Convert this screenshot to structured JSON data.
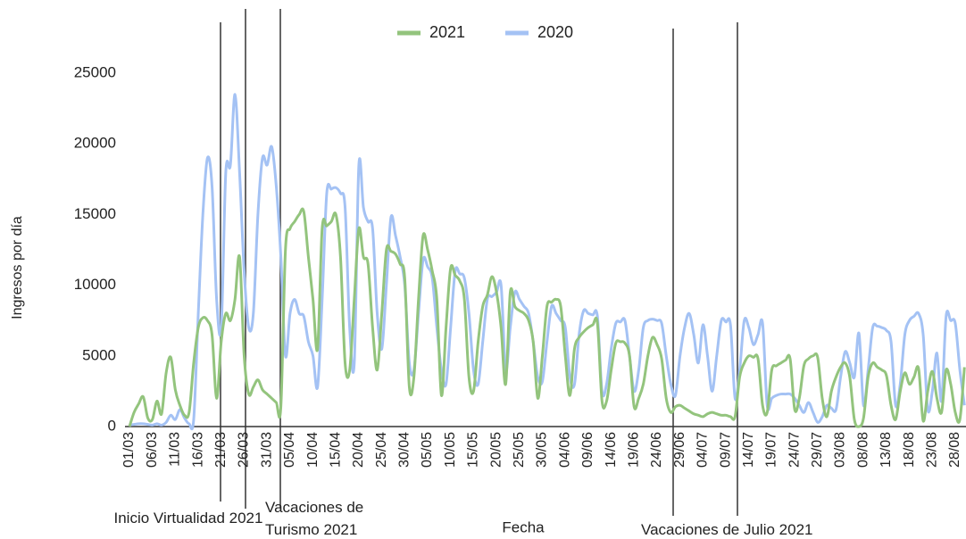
{
  "chart_data": {
    "type": "line",
    "x_label": "Fecha",
    "y_label": "Ingresos por día",
    "legend": "top",
    "categories": [
      "01/03",
      null,
      null,
      null,
      null,
      "06/03",
      null,
      null,
      null,
      null,
      "11/03",
      null,
      null,
      null,
      null,
      "16/03",
      null,
      null,
      null,
      null,
      "21/03",
      null,
      null,
      null,
      null,
      "26/03",
      null,
      null,
      null,
      null,
      "31/03",
      null,
      null,
      null,
      null,
      "05/04",
      null,
      null,
      null,
      null,
      "10/04",
      null,
      null,
      null,
      null,
      "15/04",
      null,
      null,
      null,
      null,
      "20/04",
      null,
      null,
      null,
      null,
      "25/04",
      null,
      null,
      null,
      null,
      "30/04",
      null,
      null,
      null,
      null,
      "05/05",
      null,
      null,
      null,
      null,
      "10/05",
      null,
      null,
      null,
      null,
      "15/05",
      null,
      null,
      null,
      null,
      "20/05",
      null,
      null,
      null,
      null,
      "25/05",
      null,
      null,
      null,
      null,
      "30/05",
      null,
      null,
      null,
      null,
      "04/06",
      null,
      null,
      null,
      null,
      "09/06",
      null,
      null,
      null,
      null,
      "14/06",
      null,
      null,
      null,
      null,
      "19/06",
      null,
      null,
      null,
      null,
      "24/06",
      null,
      null,
      null,
      null,
      "29/06",
      null,
      null,
      null,
      null,
      "04/07",
      null,
      null,
      null,
      null,
      "09/07",
      null,
      null,
      null,
      null,
      "14/07",
      null,
      null,
      null,
      null,
      "19/07",
      null,
      null,
      null,
      null,
      "24/07",
      null,
      null,
      null,
      null,
      "29/07",
      null,
      null,
      null,
      null,
      "03/08",
      null,
      null,
      null,
      null,
      "08/08",
      null,
      null,
      null,
      null,
      "13/08",
      null,
      null,
      null,
      null,
      "18/08",
      null,
      null,
      null,
      null,
      "23/08",
      null,
      null,
      null,
      null,
      "28/08",
      null,
      null
    ],
    "series": [
      {
        "name": "2021",
        "color": "#93c47d",
        "values": [
          0,
          1000,
          1600,
          2100,
          600,
          500,
          1800,
          900,
          3800,
          4900,
          2600,
          1500,
          800,
          1000,
          4500,
          7000,
          7700,
          7500,
          6500,
          2000,
          6000,
          8000,
          7500,
          9000,
          12000,
          5000,
          2300,
          2800,
          3300,
          2600,
          2300,
          2000,
          1700,
          1400,
          12500,
          14000,
          14500,
          15000,
          15200,
          12000,
          9000,
          5500,
          14000,
          14200,
          14500,
          15000,
          12000,
          4500,
          4000,
          9000,
          14000,
          12000,
          11500,
          7000,
          4000,
          8000,
          12500,
          12400,
          12200,
          11500,
          10500,
          2800,
          3500,
          9000,
          13500,
          12500,
          11000,
          9000,
          2200,
          7000,
          11200,
          10700,
          10300,
          9000,
          3500,
          2500,
          6000,
          8500,
          9300,
          10600,
          9500,
          7000,
          3000,
          9500,
          8500,
          8200,
          8000,
          7500,
          6000,
          2000,
          5000,
          8500,
          8800,
          9000,
          8500,
          5000,
          2200,
          5500,
          6300,
          6700,
          7000,
          7200,
          7300,
          1800,
          1800,
          4000,
          5900,
          6000,
          5900,
          5000,
          1400,
          2000,
          3000,
          5000,
          6300,
          5800,
          4800,
          2000,
          1000,
          1400,
          1500,
          1300,
          1100,
          900,
          800,
          700,
          900,
          1000,
          900,
          800,
          800,
          700,
          700,
          3500,
          4500,
          5000,
          4900,
          4800,
          1500,
          1000,
          4000,
          4300,
          4500,
          4700,
          4800,
          1200,
          2000,
          4300,
          4800,
          5000,
          4900,
          2000,
          700,
          2500,
          3500,
          4200,
          4500,
          3500,
          500,
          0,
          600,
          3500,
          4500,
          4200,
          4000,
          3600,
          1500,
          500,
          2500,
          3800,
          3000,
          3500,
          4100,
          400,
          2500,
          3900,
          2000,
          1000,
          4000,
          3000,
          1000,
          500,
          4200
        ]
      },
      {
        "name": "2020",
        "color": "#a4c2f4",
        "values": [
          100,
          150,
          200,
          200,
          150,
          100,
          200,
          100,
          300,
          800,
          500,
          1200,
          600,
          200,
          500,
          8000,
          15000,
          19000,
          17000,
          9000,
          7000,
          18000,
          18500,
          23500,
          18000,
          11000,
          7000,
          8000,
          15000,
          19000,
          18500,
          19800,
          17000,
          12000,
          5000,
          8000,
          9000,
          8000,
          7800,
          6000,
          5000,
          2800,
          9000,
          16500,
          16800,
          16900,
          16500,
          15500,
          7000,
          4500,
          18500,
          15500,
          14500,
          14000,
          8000,
          5500,
          10000,
          14800,
          13500,
          12000,
          10000,
          4500,
          4000,
          8000,
          11800,
          11300,
          10500,
          7000,
          4000,
          3000,
          7000,
          11000,
          10800,
          10500,
          8000,
          4000,
          3000,
          6000,
          9000,
          9200,
          9500,
          10000,
          4000,
          7000,
          9500,
          9000,
          8500,
          8000,
          6000,
          3500,
          3200,
          6000,
          8500,
          8000,
          7500,
          7000,
          3500,
          3000,
          6500,
          8200,
          8000,
          7900,
          7800,
          2500,
          3000,
          5500,
          7300,
          7400,
          7500,
          5000,
          2500,
          4000,
          7000,
          7500,
          7600,
          7500,
          7300,
          5000,
          3000,
          2200,
          5000,
          7000,
          8000,
          6500,
          4500,
          7200,
          5000,
          2500,
          5000,
          7500,
          7400,
          7200,
          2000,
          4000,
          7500,
          7000,
          5800,
          6500,
          7300,
          1500,
          2000,
          2200,
          2300,
          2300,
          2300,
          2000,
          1500,
          1000,
          1700,
          1000,
          300,
          700,
          1500,
          1300,
          1200,
          3500,
          5300,
          4500,
          3500,
          6600,
          1500,
          4000,
          7000,
          7100,
          7000,
          6800,
          6000,
          1500,
          3000,
          6500,
          7500,
          7800,
          8000,
          6500,
          1200,
          2500,
          5200,
          1800,
          7800,
          7500,
          7300,
          4000,
          1500
        ]
      }
    ],
    "ylim": [
      0,
      25000
    ],
    "yticks": [
      0,
      5000,
      10000,
      15000,
      20000,
      25000
    ],
    "grid": false,
    "annotations": [
      "Inicio Virtualidad 2021",
      "Vacaciones de Turismo 2021",
      "Vacaciones de Julio 2021"
    ]
  }
}
